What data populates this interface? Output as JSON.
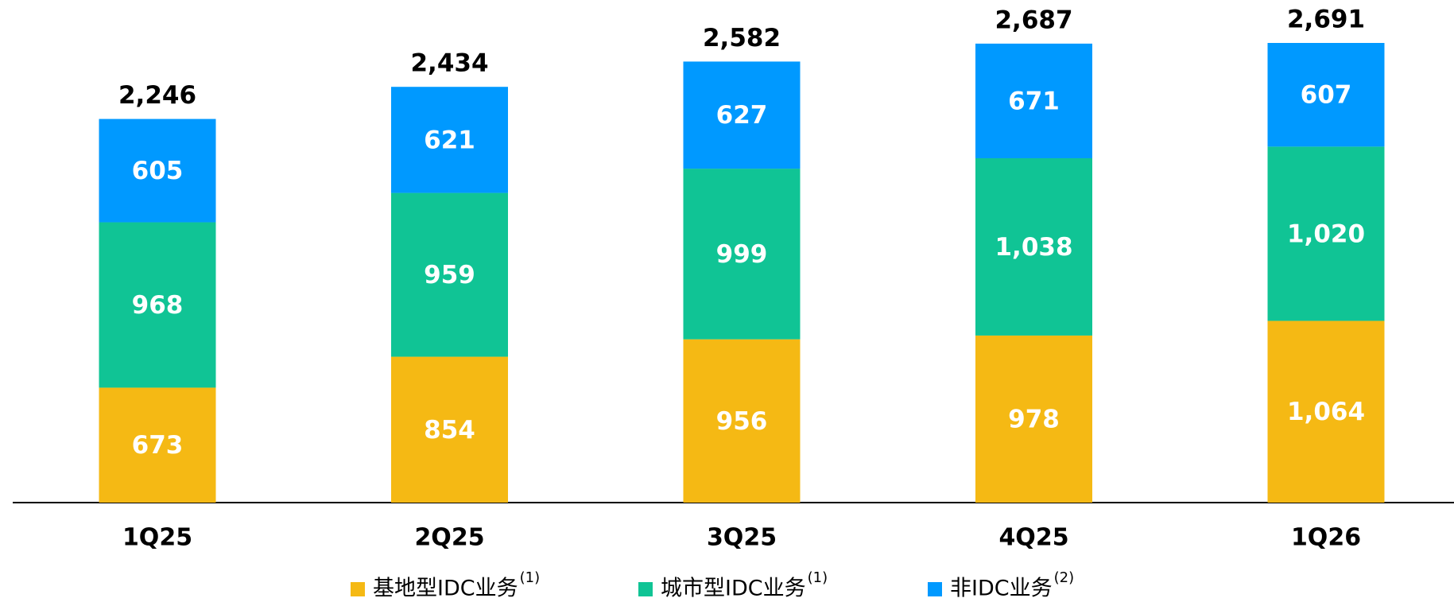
{
  "chart_data": {
    "type": "stacked_bar",
    "categories": [
      "1Q25",
      "2Q25",
      "3Q25",
      "4Q25",
      "1Q26"
    ],
    "series": [
      {
        "name": "基地型IDC业务",
        "note": "(1)",
        "color": "#F5B914",
        "values": [
          673,
          854,
          956,
          978,
          1064
        ],
        "value_labels": [
          "673",
          "854",
          "956",
          "978",
          "1,064"
        ]
      },
      {
        "name": "城市型IDC业务",
        "note": "(1)",
        "color": "#10C495",
        "values": [
          968,
          959,
          999,
          1038,
          1020
        ],
        "value_labels": [
          "968",
          "959",
          "999",
          "1,038",
          "1,020"
        ]
      },
      {
        "name": "非IDC业务",
        "note": "(2)",
        "color": "#0099FF",
        "values": [
          605,
          621,
          627,
          671,
          607
        ],
        "value_labels": [
          "605",
          "621",
          "627",
          "671",
          "607"
        ]
      }
    ],
    "totals": [
      2246,
      2434,
      2582,
      2687,
      2691
    ],
    "total_labels": [
      "2,246",
      "2,434",
      "2,582",
      "2,687",
      "2,691"
    ],
    "legend": "bottom"
  }
}
